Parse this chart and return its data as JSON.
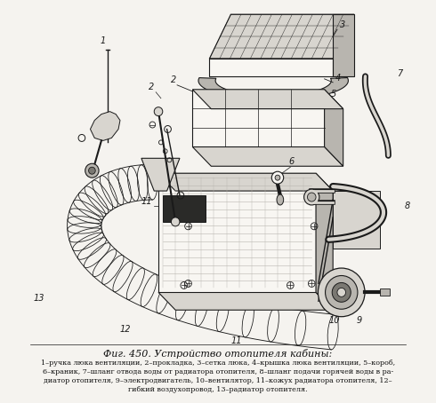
{
  "title": "Фиг. 450. Устройство отопителя кабины:",
  "caption_line1": "1–ручка люка вентиляции, 2–прокладка, 3–сетка люка, 4–крышка люка вентиляции, 5–короб,",
  "caption_line2": "6–краник, 7–шланг отвода воды от радиатора отопителя, 8–шланг подачи горячей воды в ра-",
  "caption_line3": "диатор отопителя, 9–электродвигатель, 10–вентилятор, 11–кожух радиатора отопителя, 12–",
  "caption_line4": "гибкий воздухопровод, 13–радиатор отопителя.",
  "bg_color": "#f5f3ef",
  "fig_width": 4.9,
  "fig_height": 4.54,
  "dpi": 100
}
